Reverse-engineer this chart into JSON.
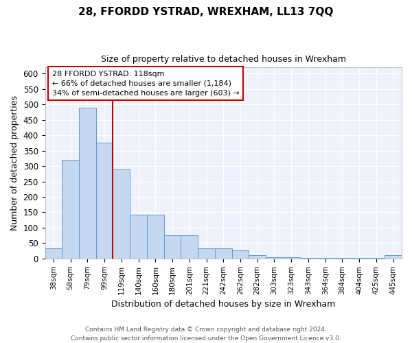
{
  "title": "28, FFORDD YSTRAD, WREXHAM, LL13 7QQ",
  "subtitle": "Size of property relative to detached houses in Wrexham",
  "xlabel": "Distribution of detached houses by size in Wrexham",
  "ylabel": "Number of detached properties",
  "categories": [
    "38sqm",
    "58sqm",
    "79sqm",
    "99sqm",
    "119sqm",
    "140sqm",
    "160sqm",
    "180sqm",
    "201sqm",
    "221sqm",
    "242sqm",
    "262sqm",
    "282sqm",
    "303sqm",
    "323sqm",
    "343sqm",
    "364sqm",
    "384sqm",
    "404sqm",
    "425sqm",
    "445sqm"
  ],
  "values": [
    32,
    320,
    490,
    375,
    290,
    143,
    143,
    75,
    75,
    32,
    32,
    27,
    10,
    5,
    3,
    2,
    2,
    2,
    2,
    1,
    10
  ],
  "bar_color": "#c5d8f0",
  "bar_edge_color": "#5b9bd5",
  "vline_x_index": 3.5,
  "annotation_line1": "28 FFORDD YSTRAD: 118sqm",
  "annotation_line2": "← 66% of detached houses are smaller (1,184)",
  "annotation_line3": "34% of semi-detached houses are larger (603) →",
  "vline_color": "#c00000",
  "ylim": [
    0,
    620
  ],
  "yticks": [
    0,
    50,
    100,
    150,
    200,
    250,
    300,
    350,
    400,
    450,
    500,
    550,
    600
  ],
  "footer_text": "Contains HM Land Registry data © Crown copyright and database right 2024.\nContains public sector information licensed under the Open Government Licence v3.0.",
  "background_color": "#eef2fb"
}
